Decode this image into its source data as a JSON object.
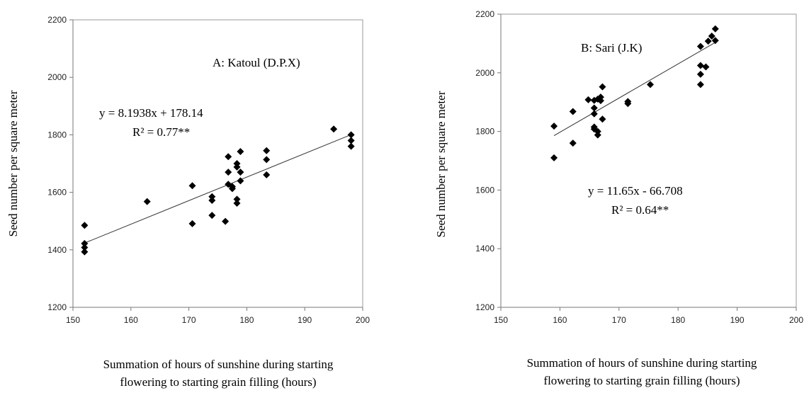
{
  "chart_data": [
    {
      "type": "scatter",
      "annotation": "A: Katoul (D.P.X)",
      "xlabel": "Summation of hours of sunshine during starting flowering to starting grain filling (hours)",
      "ylabel": "Seed number per square meter",
      "xlim": [
        150,
        200
      ],
      "ylim": [
        1200,
        2200
      ],
      "xticks": [
        "150",
        "160",
        "170",
        "180",
        "190",
        "200"
      ],
      "yticks": [
        "1200",
        "1400",
        "1600",
        "1800",
        "2000",
        "2200"
      ],
      "equation": "y = 8.1938x + 178.14",
      "r2": "R² = 0.77**",
      "trendline": {
        "slope": 8.1938,
        "intercept": 178.14,
        "x_range": [
          152,
          198
        ]
      },
      "grid": false,
      "points": [
        [
          152,
          1485
        ],
        [
          152,
          1422
        ],
        [
          152,
          1408
        ],
        [
          152,
          1393
        ],
        [
          162.8,
          1568
        ],
        [
          170.6,
          1623
        ],
        [
          170.6,
          1491
        ],
        [
          174,
          1585
        ],
        [
          174,
          1572
        ],
        [
          174,
          1520
        ],
        [
          176.3,
          1499
        ],
        [
          176.8,
          1724
        ],
        [
          176.8,
          1670
        ],
        [
          176.8,
          1628
        ],
        [
          177.5,
          1620
        ],
        [
          177.5,
          1613
        ],
        [
          178.3,
          1700
        ],
        [
          178.3,
          1688
        ],
        [
          178.3,
          1576
        ],
        [
          178.3,
          1562
        ],
        [
          178.9,
          1742
        ],
        [
          178.9,
          1670
        ],
        [
          178.9,
          1640
        ],
        [
          183.4,
          1745
        ],
        [
          183.4,
          1714
        ],
        [
          183.4,
          1661
        ],
        [
          195,
          1820
        ],
        [
          198,
          1800
        ],
        [
          198,
          1780
        ],
        [
          198,
          1760
        ]
      ]
    },
    {
      "type": "scatter",
      "annotation": "B: Sari (J.K)",
      "xlabel": "Summation of hours of sunshine during starting flowering to starting grain filling (hours)",
      "ylabel": "Seed number per square meter",
      "xlim": [
        150,
        200
      ],
      "ylim": [
        1200,
        2200
      ],
      "xticks": [
        "150",
        "160",
        "170",
        "180",
        "190",
        "200"
      ],
      "yticks": [
        "1200",
        "1400",
        "1600",
        "1800",
        "2000",
        "2200"
      ],
      "equation": "y = 11.65x - 66.708",
      "r2": "R² = 0.64**",
      "trendline": {
        "slope": 11.65,
        "intercept": -66.708,
        "x_range": [
          159,
          186.5
        ]
      },
      "grid": false,
      "points": [
        [
          159,
          1818
        ],
        [
          159,
          1710
        ],
        [
          162.2,
          1868
        ],
        [
          162.2,
          1760
        ],
        [
          164.8,
          1908
        ],
        [
          165.8,
          1906
        ],
        [
          165.8,
          1880
        ],
        [
          165.8,
          1860
        ],
        [
          165.8,
          1815
        ],
        [
          165.8,
          1808
        ],
        [
          166.4,
          1910
        ],
        [
          166.4,
          1800
        ],
        [
          166.4,
          1788
        ],
        [
          166.9,
          1917
        ],
        [
          166.9,
          1905
        ],
        [
          167.2,
          1952
        ],
        [
          167.2,
          1842
        ],
        [
          171.5,
          1902
        ],
        [
          171.5,
          1895
        ],
        [
          175.3,
          1960
        ],
        [
          183.8,
          2090
        ],
        [
          183.8,
          2025
        ],
        [
          183.8,
          1995
        ],
        [
          183.8,
          1960
        ],
        [
          184.7,
          2020
        ],
        [
          185.1,
          2108
        ],
        [
          185.7,
          2125
        ],
        [
          186.3,
          2150
        ],
        [
          186.3,
          2110
        ]
      ]
    }
  ]
}
